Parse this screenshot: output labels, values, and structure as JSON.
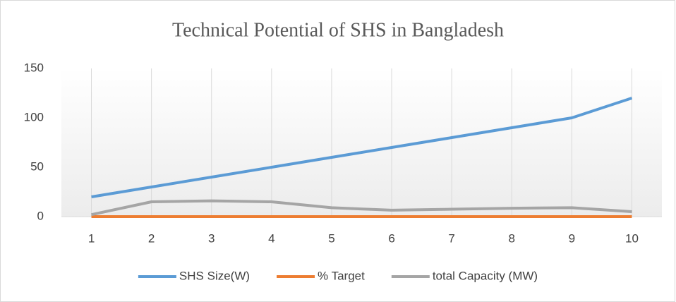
{
  "chart_data": {
    "type": "line",
    "title": "Technical Potential of SHS in Bangladesh",
    "categories": [
      "1",
      "2",
      "3",
      "4",
      "5",
      "6",
      "7",
      "8",
      "9",
      "10"
    ],
    "series": [
      {
        "name": "SHS Size(W)",
        "color": "#5b9bd5",
        "values": [
          20,
          30,
          40,
          50,
          60,
          70,
          80,
          90,
          100,
          120
        ]
      },
      {
        "name": "% Target",
        "color": "#ed7d31",
        "values": [
          0,
          0,
          0,
          0,
          0,
          0,
          0,
          0,
          0,
          0
        ]
      },
      {
        "name": "total Capacity (MW)",
        "color": "#a5a5a5",
        "values": [
          2,
          15,
          16,
          15,
          9,
          6.5,
          7.5,
          8.5,
          9,
          5
        ]
      }
    ],
    "ylim": [
      0,
      150
    ],
    "yticks": [
      0,
      50,
      100,
      150
    ],
    "grid": true,
    "legend": "bottom"
  }
}
